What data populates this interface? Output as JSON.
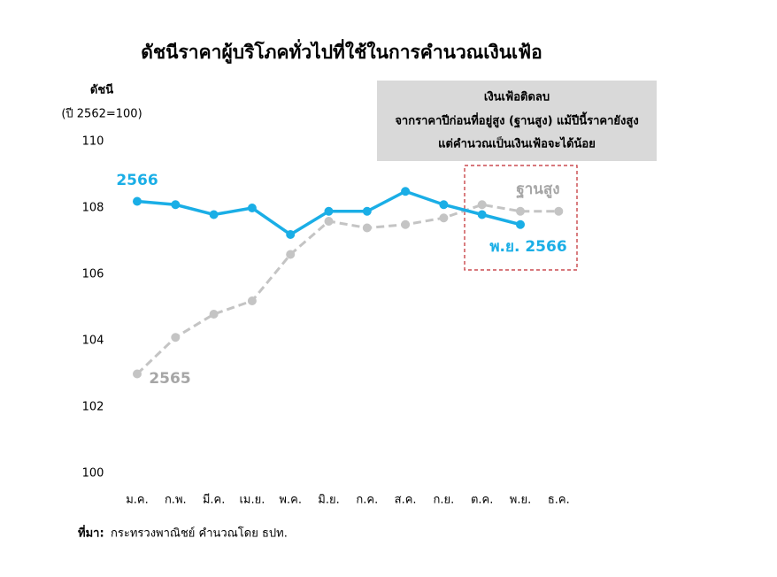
{
  "chart_data": {
    "type": "line",
    "title": "ดัชนีราคาผู้บริโภคทั่วไปที่ใช้ในการคำนวณเงินเฟ้อ",
    "y_label": [
      "ดัชนี",
      "(ปี 2562=100)"
    ],
    "categories": [
      "ม.ค.",
      "ก.พ.",
      "มี.ค.",
      "เม.ย.",
      "พ.ค.",
      "มิ.ย.",
      "ก.ค.",
      "ส.ค.",
      "ก.ย.",
      "ต.ค.",
      "พ.ย.",
      "ธ.ค."
    ],
    "series": [
      {
        "name": "2566",
        "color": "#1aaee6",
        "dashed": false,
        "values": [
          108.2,
          108.1,
          107.8,
          108.0,
          107.2,
          107.9,
          107.9,
          108.5,
          108.1,
          107.8,
          107.5,
          null
        ]
      },
      {
        "name": "2565",
        "color": "#c4c4c4",
        "dashed": true,
        "values": [
          103.0,
          104.1,
          104.8,
          105.2,
          106.6,
          107.6,
          107.4,
          107.5,
          107.7,
          108.1,
          107.9,
          107.9
        ]
      }
    ],
    "ylim": [
      100,
      110
    ],
    "yticks": [
      100,
      102,
      104,
      106,
      108,
      110
    ],
    "grid": false,
    "annotation_box": [
      "เงินเฟ้อติดลบ",
      "จากราคาปีก่อนที่อยู่สูง (ฐานสูง) แม้ปีนี้ราคายังสูง",
      "แต่คำนวณเป็นเงินเฟ้อจะได้น้อย"
    ],
    "annotations": [
      "ฐานสูง",
      "พ.ย. 2566"
    ],
    "source_label": "ที่มา:",
    "source": "กระทรวงพาณิชย์ คำนวณโดย ธปท."
  }
}
